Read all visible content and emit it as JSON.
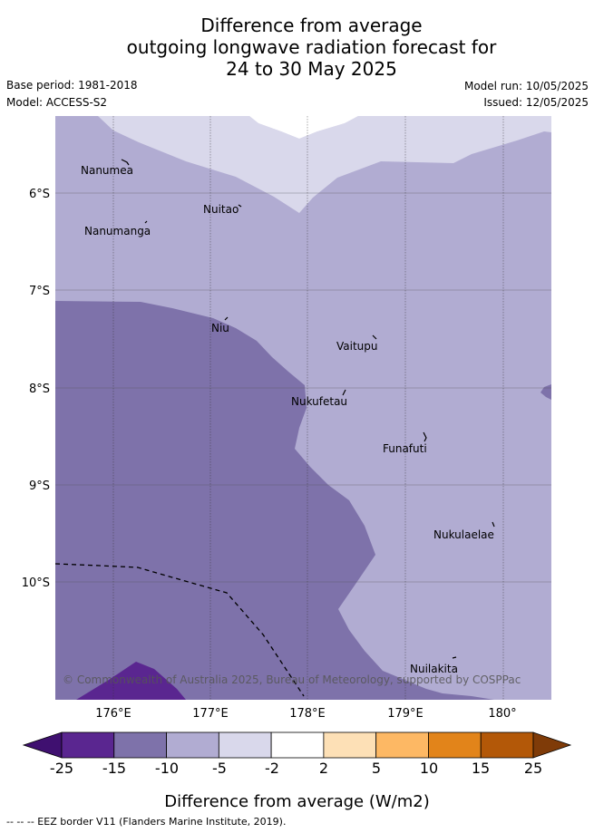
{
  "title": {
    "line1": "Difference from average",
    "line2": "outgoing longwave radiation forecast for",
    "line3": "24 to 30 May 2025"
  },
  "meta": {
    "base_period": "Base period: 1981-2018",
    "model": "Model: ACCESS-S2",
    "model_run": "Model run: 10/05/2025",
    "issued": "Issued: 12/05/2025"
  },
  "map": {
    "lat_labels": [
      "6°S",
      "7°S",
      "8°S",
      "9°S",
      "10°S"
    ],
    "lon_labels": [
      "176°E",
      "177°E",
      "178°E",
      "179°E",
      "180°"
    ],
    "places": [
      {
        "name": "Nanumea"
      },
      {
        "name": "Nuitao"
      },
      {
        "name": "Nanumanga"
      },
      {
        "name": "Niu"
      },
      {
        "name": "Vaitupu"
      },
      {
        "name": "Nukufetau"
      },
      {
        "name": "Funafuti"
      },
      {
        "name": "Nukulaelae"
      },
      {
        "name": "Nuilakita"
      }
    ],
    "copyright": "© Commonwealth of Australia 2025, Bureau of Meteorology, supported by COSPPac"
  },
  "colorbar": {
    "ticks": [
      "-25",
      "-15",
      "-10",
      "-5",
      "-2",
      "2",
      "5",
      "10",
      "15",
      "25"
    ],
    "colors": [
      "#3f1070",
      "#5a2690",
      "#7e72aa",
      "#b1acd2",
      "#d9d8eb",
      "#ffffff",
      "#fde0b6",
      "#fdb864",
      "#e2841a",
      "#b35808",
      "#7f3b08"
    ],
    "label": "Difference from average (W/m2)"
  },
  "footnote": "-- -- -- EEZ border V11 (Flanders Marine Institute, 2019)."
}
